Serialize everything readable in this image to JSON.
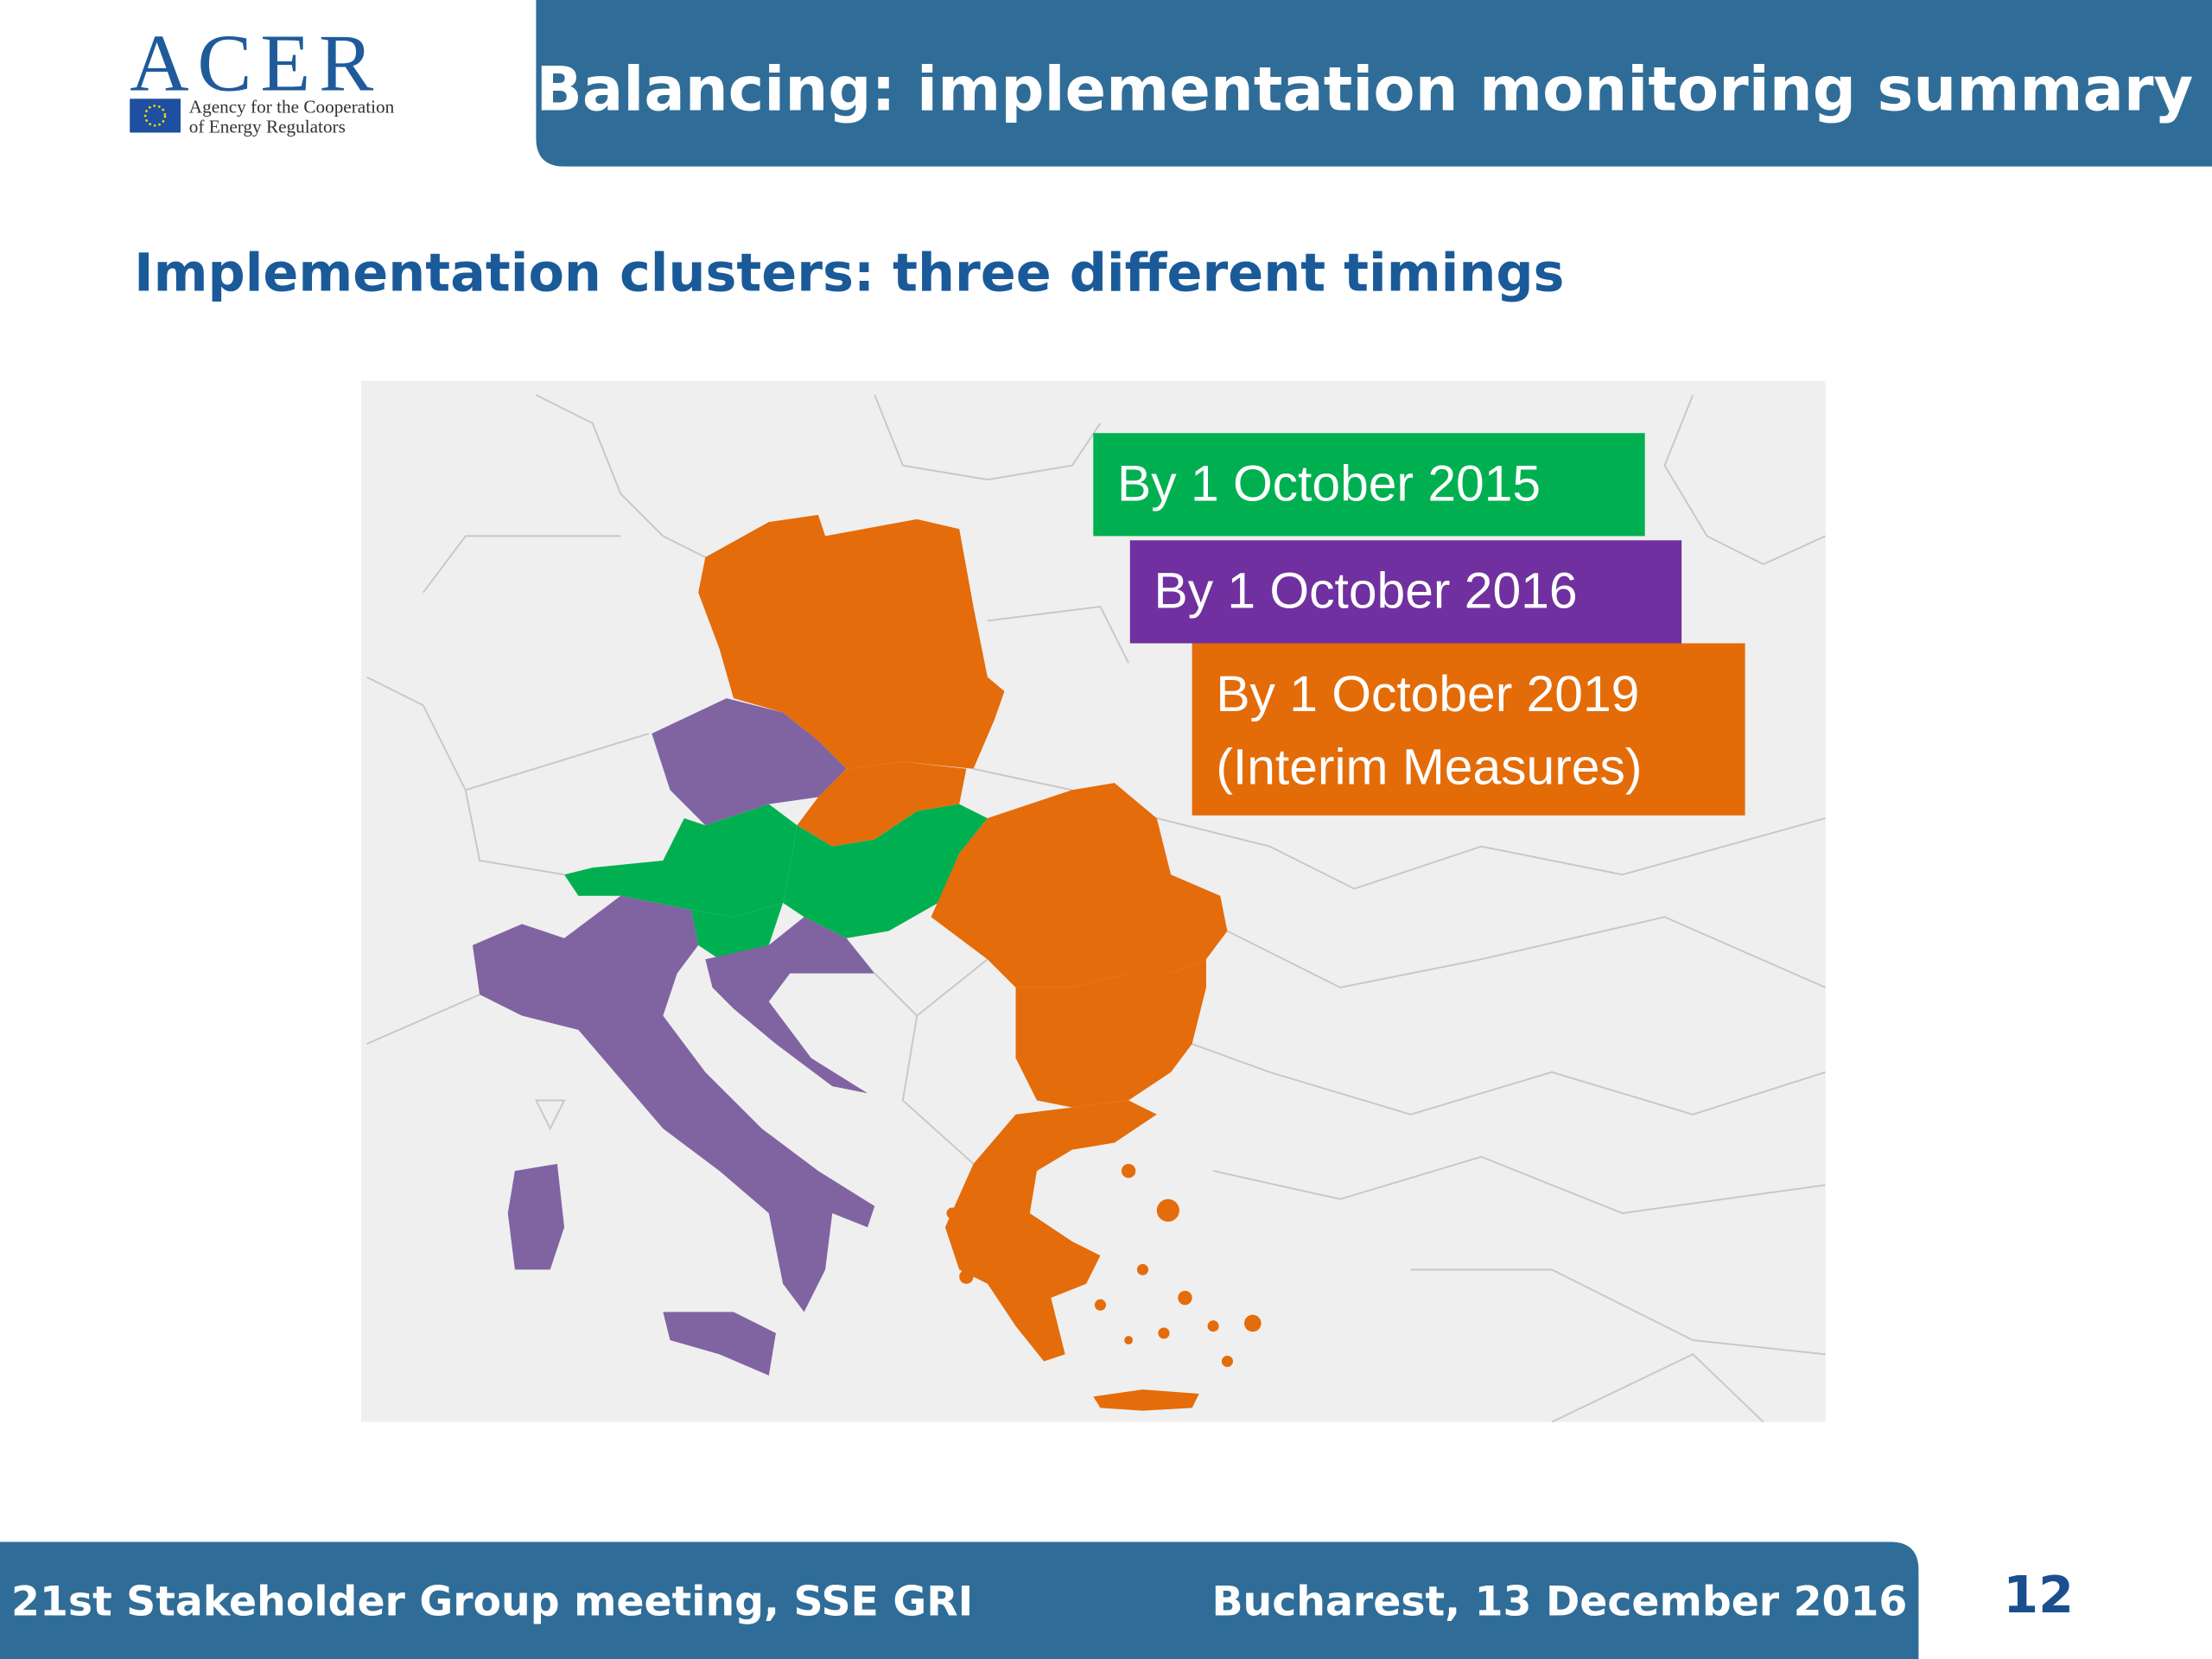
{
  "logo": {
    "name": "ACER",
    "lines": [
      "Agency for the Cooperation",
      "of Energy Regulators"
    ]
  },
  "header": {
    "title": "Balancing: implementation monitoring summary"
  },
  "subtitle": "Implementation clusters: three different timings",
  "legend": [
    {
      "lines": [
        "By 1 October 2015"
      ]
    },
    {
      "lines": [
        "By 1 October 2016"
      ]
    },
    {
      "lines": [
        "By 1 October 2019",
        "(Interim Measures)"
      ]
    }
  ],
  "footer": {
    "left": "21st Stakeholder Group meeting, SSE GRI",
    "right": "Bucharest, 13 December 2016",
    "page_number": "12"
  }
}
